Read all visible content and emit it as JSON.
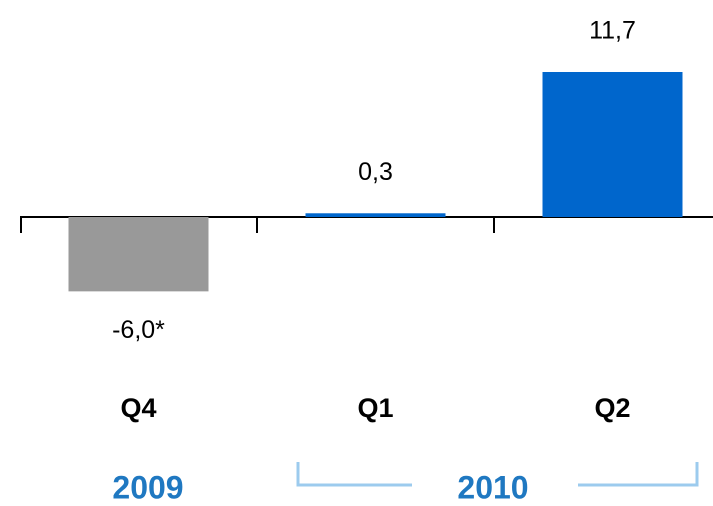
{
  "chart_data": {
    "type": "bar",
    "categories": [
      "Q4",
      "Q1",
      "Q2"
    ],
    "values": [
      -6.0,
      0.3,
      11.7
    ],
    "value_labels": [
      "-6,0*",
      "0,3",
      "11,7"
    ],
    "colors": [
      "#999999",
      "#0066cc",
      "#0066cc"
    ],
    "groups": [
      "2009",
      "2010"
    ]
  }
}
